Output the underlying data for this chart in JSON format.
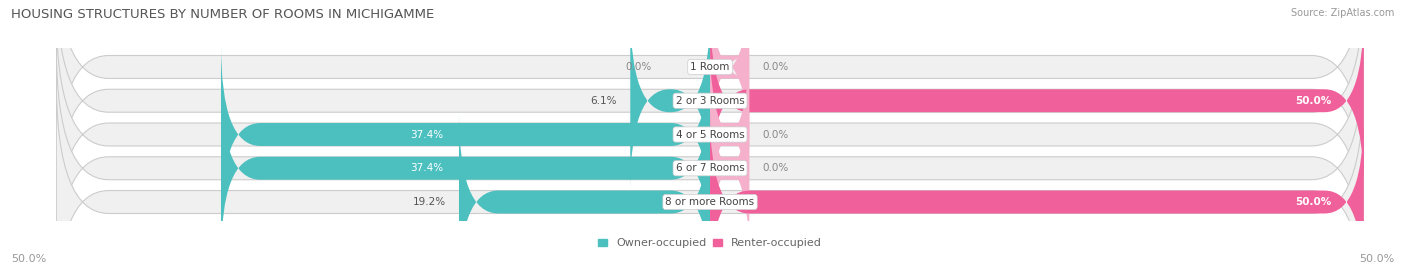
{
  "title": "HOUSING STRUCTURES BY NUMBER OF ROOMS IN MICHIGAMME",
  "source": "Source: ZipAtlas.com",
  "categories": [
    "1 Room",
    "2 or 3 Rooms",
    "4 or 5 Rooms",
    "6 or 7 Rooms",
    "8 or more Rooms"
  ],
  "owner_values": [
    0.0,
    6.1,
    37.4,
    37.4,
    19.2
  ],
  "renter_values": [
    0.0,
    50.0,
    0.0,
    0.0,
    50.0
  ],
  "renter_small_values": [
    3.0,
    50.0,
    3.0,
    3.0,
    50.0
  ],
  "owner_color": "#4cbfbf",
  "renter_color_full": "#f0609a",
  "renter_color_small": "#f5b0cc",
  "bar_bg_color": "#f2f2f2",
  "bar_border_color": "#d8d8d8",
  "max_value": 50.0,
  "x_left_label": "50.0%",
  "x_right_label": "50.0%",
  "title_fontsize": 9.5,
  "source_fontsize": 7,
  "label_fontsize": 7.5,
  "category_fontsize": 7.5,
  "legend_fontsize": 8,
  "axis_fontsize": 8,
  "bar_height": 0.68
}
